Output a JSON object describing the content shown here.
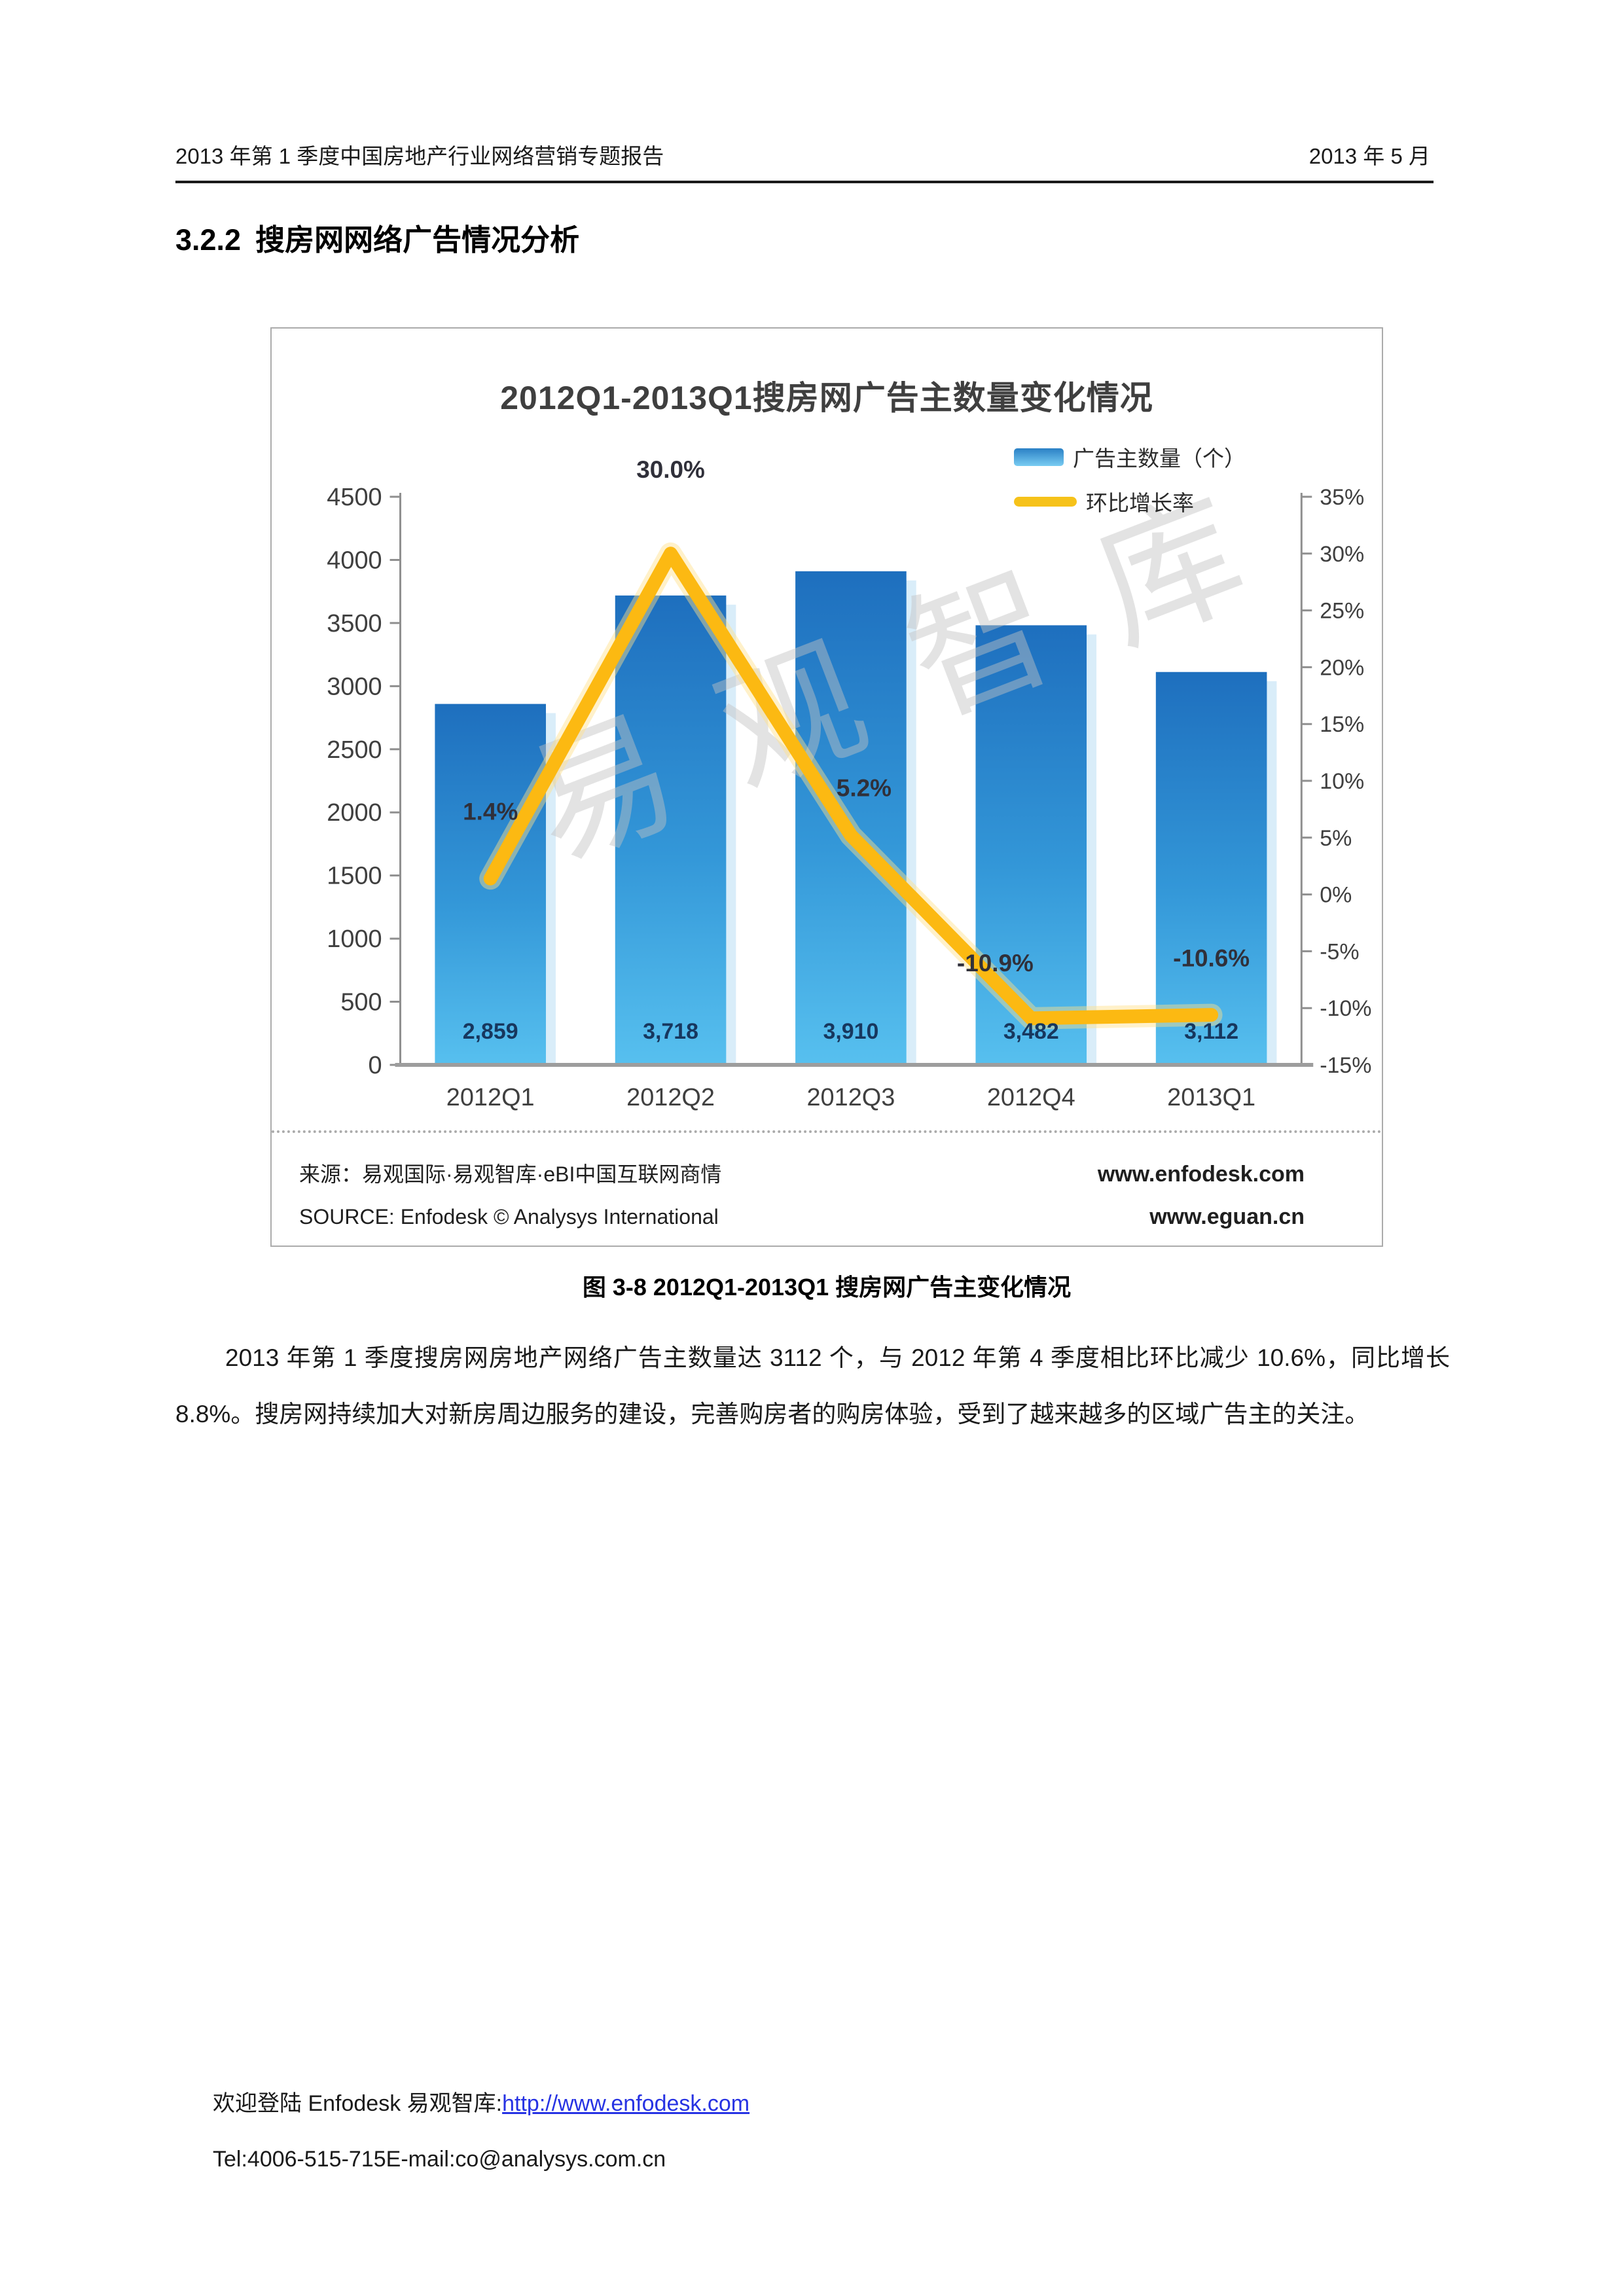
{
  "header": {
    "left": "2013 年第 1 季度中国房地产行业网络营销专题报告",
    "right": "2013 年 5 月"
  },
  "section": {
    "number": "3.2.2",
    "title": "搜房网网络广告情况分析"
  },
  "figure": {
    "caption": "图 3-8 2012Q1-2013Q1 搜房网广告主变化情况",
    "watermark": "易观智库",
    "source_cn": "来源：易观国际·易观智库·eBI中国互联网商情",
    "source_en": "SOURCE: Enfodesk © Analysys International",
    "site1": "www.enfodesk.com",
    "site2": "www.eguan.cn"
  },
  "paragraph": {
    "text": "2013 年第 1 季度搜房网房地产网络广告主数量达 3112 个，与 2012 年第 4 季度相比环比减少 10.6%，同比增长 8.8%。搜房网持续加大对新房周边服务的建设，完善购房者的购房体验，受到了越来越多的区域广告主的关注。"
  },
  "footer": {
    "line1_prefix": "欢迎登陆 Enfodesk 易观智库:",
    "line1_link": "http://www.enfodesk.com",
    "line2": "Tel:4006-515-715E-mail:co@analysys.com.cn"
  },
  "colors": {
    "link_blue": "#2733e3",
    "bar_top": "#1e6fbe",
    "bar_mid": "#3397d8",
    "bar_bottom": "#57c0ef",
    "line_yellow": "#fcb912",
    "value_label_navy": "#17375e"
  },
  "chart_data": {
    "type": "bar",
    "title": "2012Q1-2013Q1搜房网广告主数量变化情况",
    "categories": [
      "2012Q1",
      "2012Q2",
      "2012Q3",
      "2012Q4",
      "2013Q1"
    ],
    "series": [
      {
        "name": "广告主数量（个）",
        "type": "bar",
        "axis": "left",
        "values": [
          2859,
          3718,
          3910,
          3482,
          3112
        ],
        "labels": [
          "2,859",
          "3,718",
          "3,910",
          "3,482",
          "3,112"
        ],
        "color_top": "#1e6fbe",
        "color_mid": "#3397d8",
        "color_bottom": "#57c0ef"
      },
      {
        "name": "环比增长率",
        "type": "line",
        "axis": "right",
        "values": [
          1.4,
          30.0,
          5.2,
          -10.9,
          -10.6
        ],
        "labels": [
          "1.4%",
          "30.0%",
          "5.2%",
          "-10.9%",
          "-10.6%"
        ],
        "color": "#fcb912"
      }
    ],
    "left_axis": {
      "min": 0,
      "max": 4500,
      "step": 500
    },
    "right_axis": {
      "min": -15,
      "max": 35,
      "step": 5,
      "suffix": "%"
    },
    "legend_position": "top-right",
    "grid": false
  }
}
